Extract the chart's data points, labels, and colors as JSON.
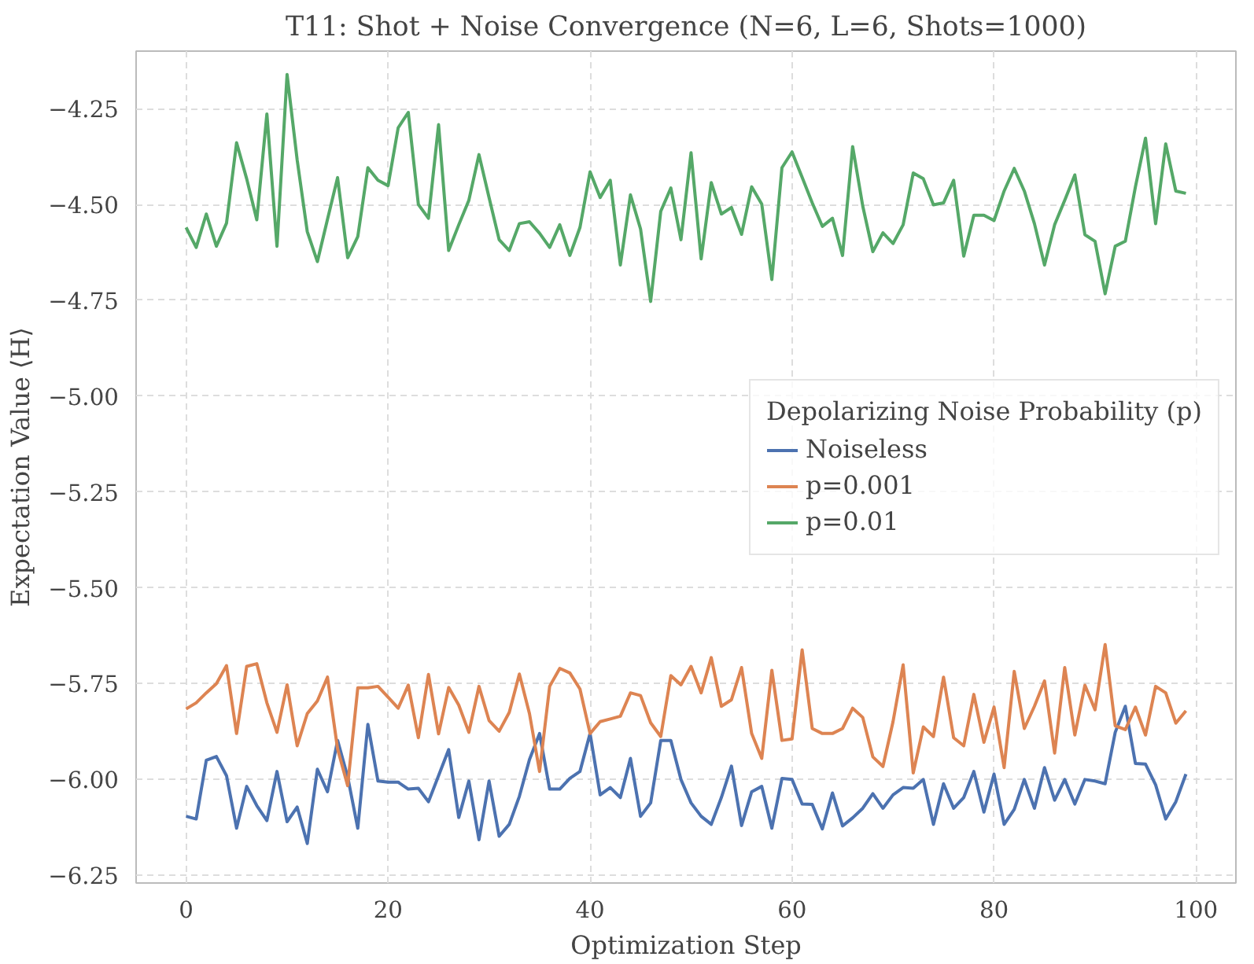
{
  "chart_data": {
    "type": "line",
    "title": "T11: Shot + Noise Convergence (N=6, L=6, Shots=1000)",
    "xlabel": "Optimization Step",
    "ylabel": "Expectation Value ⟨H⟩",
    "legend_title": "Depolarizing Noise Probability (p)",
    "x": [
      0,
      1,
      2,
      3,
      4,
      5,
      6,
      7,
      8,
      9,
      10,
      11,
      12,
      13,
      14,
      15,
      16,
      17,
      18,
      19,
      20,
      21,
      22,
      23,
      24,
      25,
      26,
      27,
      28,
      29,
      30,
      31,
      32,
      33,
      34,
      35,
      36,
      37,
      38,
      39,
      40,
      41,
      42,
      43,
      44,
      45,
      46,
      47,
      48,
      49,
      50,
      51,
      52,
      53,
      54,
      55,
      56,
      57,
      58,
      59,
      60,
      61,
      62,
      63,
      64,
      65,
      66,
      67,
      68,
      69,
      70,
      71,
      72,
      73,
      74,
      75,
      76,
      77,
      78,
      79,
      80,
      81,
      82,
      83,
      84,
      85,
      86,
      87,
      88,
      89,
      90,
      91,
      92,
      93,
      94,
      95,
      96,
      97,
      98,
      99
    ],
    "series": [
      {
        "name": "Noiseless",
        "color": "#4c72b0",
        "values": [
          -6.096,
          -6.103,
          -5.95,
          -5.94,
          -5.99,
          -6.127,
          -6.018,
          -6.068,
          -6.107,
          -5.979,
          -6.11,
          -6.072,
          -6.167,
          -5.973,
          -6.032,
          -5.898,
          -5.993,
          -6.127,
          -5.856,
          -6.004,
          -6.007,
          -6.007,
          -6.025,
          -6.023,
          -6.058,
          -5.99,
          -5.922,
          -6.099,
          -6.004,
          -6.157,
          -6.004,
          -6.148,
          -6.117,
          -6.044,
          -5.948,
          -5.88,
          -6.025,
          -6.025,
          -5.997,
          -5.979,
          -5.88,
          -6.04,
          -6.021,
          -6.047,
          -5.945,
          -6.096,
          -6.061,
          -5.898,
          -5.898,
          -6.0,
          -6.061,
          -6.096,
          -6.117,
          -6.047,
          -5.965,
          -6.12,
          -6.032,
          -6.018,
          -6.127,
          -5.997,
          -6.0,
          -6.064,
          -6.065,
          -6.129,
          -6.035,
          -6.121,
          -6.1,
          -6.075,
          -6.037,
          -6.075,
          -6.04,
          -6.021,
          -6.023,
          -6.0,
          -6.117,
          -6.011,
          -6.075,
          -6.047,
          -5.979,
          -6.085,
          -5.986,
          -6.117,
          -6.078,
          -6.0,
          -6.075,
          -5.969,
          -6.054,
          -6.0,
          -6.064,
          -6.0,
          -6.004,
          -6.011,
          -5.877,
          -5.809,
          -5.958,
          -5.96,
          -6.014,
          -6.103,
          -6.058,
          -5.986
        ]
      },
      {
        "name": "p=0.001",
        "color": "#dd8452",
        "values": [
          -5.816,
          -5.8,
          -5.774,
          -5.75,
          -5.703,
          -5.88,
          -5.705,
          -5.698,
          -5.8,
          -5.877,
          -5.753,
          -5.912,
          -5.828,
          -5.795,
          -5.733,
          -5.92,
          -6.016,
          -5.761,
          -5.761,
          -5.757,
          -5.785,
          -5.814,
          -5.754,
          -5.891,
          -5.726,
          -5.881,
          -5.76,
          -5.806,
          -5.877,
          -5.757,
          -5.846,
          -5.874,
          -5.825,
          -5.725,
          -5.828,
          -5.979,
          -5.757,
          -5.71,
          -5.722,
          -5.764,
          -5.88,
          -5.849,
          -5.842,
          -5.835,
          -5.774,
          -5.781,
          -5.852,
          -5.888,
          -5.729,
          -5.753,
          -5.705,
          -5.774,
          -5.682,
          -5.809,
          -5.792,
          -5.708,
          -5.88,
          -5.945,
          -5.715,
          -5.898,
          -5.894,
          -5.662,
          -5.867,
          -5.88,
          -5.88,
          -5.867,
          -5.814,
          -5.838,
          -5.941,
          -5.966,
          -5.849,
          -5.701,
          -5.983,
          -5.863,
          -5.888,
          -5.733,
          -5.891,
          -5.912,
          -5.778,
          -5.903,
          -5.811,
          -5.969,
          -5.718,
          -5.867,
          -5.809,
          -5.743,
          -5.931,
          -5.708,
          -5.884,
          -5.754,
          -5.818,
          -5.648,
          -5.86,
          -5.87,
          -5.811,
          -5.884,
          -5.757,
          -5.774,
          -5.853,
          -5.821
        ]
      },
      {
        "name": "p=0.01",
        "color": "#55a868",
        "values": [
          -4.56,
          -4.612,
          -4.525,
          -4.609,
          -4.549,
          -4.339,
          -4.433,
          -4.54,
          -4.264,
          -4.609,
          -4.161,
          -4.384,
          -4.571,
          -4.649,
          -4.539,
          -4.43,
          -4.639,
          -4.584,
          -4.404,
          -4.437,
          -4.451,
          -4.3,
          -4.26,
          -4.5,
          -4.536,
          -4.292,
          -4.62,
          -4.553,
          -4.489,
          -4.37,
          -4.482,
          -4.592,
          -4.62,
          -4.55,
          -4.545,
          -4.575,
          -4.612,
          -4.553,
          -4.633,
          -4.56,
          -4.415,
          -4.482,
          -4.437,
          -4.658,
          -4.475,
          -4.564,
          -4.753,
          -4.518,
          -4.457,
          -4.592,
          -4.365,
          -4.642,
          -4.443,
          -4.525,
          -4.508,
          -4.578,
          -4.454,
          -4.499,
          -4.696,
          -4.404,
          -4.363,
          -4.429,
          -4.496,
          -4.557,
          -4.536,
          -4.633,
          -4.349,
          -4.504,
          -4.623,
          -4.574,
          -4.602,
          -4.553,
          -4.418,
          -4.433,
          -4.501,
          -4.496,
          -4.437,
          -4.635,
          -4.528,
          -4.528,
          -4.542,
          -4.465,
          -4.406,
          -4.465,
          -4.55,
          -4.658,
          -4.553,
          -4.489,
          -4.423,
          -4.579,
          -4.596,
          -4.733,
          -4.609,
          -4.596,
          -4.454,
          -4.327,
          -4.55,
          -4.342,
          -4.465,
          -4.471
        ]
      }
    ],
    "xlim": [
      -4.95,
      103.95
    ],
    "ylim": [
      -6.27,
      -4.1
    ],
    "xticks": [
      0,
      20,
      40,
      60,
      80,
      100
    ],
    "yticks": [
      {
        "value": -6.25,
        "label": "−6.25"
      },
      {
        "value": -6.0,
        "label": "−6.00"
      },
      {
        "value": -5.75,
        "label": "−5.75"
      },
      {
        "value": -5.5,
        "label": "−5.50"
      },
      {
        "value": -5.25,
        "label": "−5.25"
      },
      {
        "value": -5.0,
        "label": "−5.00"
      },
      {
        "value": -4.75,
        "label": "−4.75"
      },
      {
        "value": -4.5,
        "label": "−4.50"
      },
      {
        "value": -4.25,
        "label": "−4.25"
      }
    ],
    "grid": true,
    "legend": "center right",
    "marker": "none",
    "line_style": "solid"
  }
}
